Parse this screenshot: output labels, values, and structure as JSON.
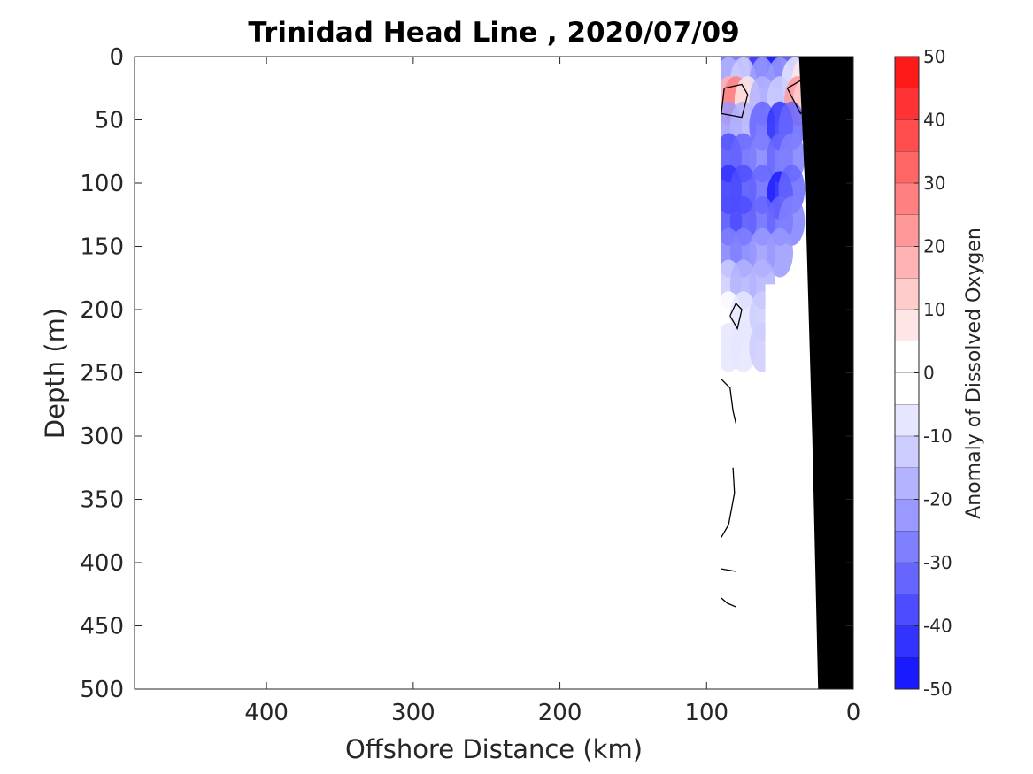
{
  "chart_data": {
    "type": "heatmap",
    "title": "Trinidad Head Line , 2020/07/09",
    "xlabel": "Offshore Distance (km)",
    "ylabel": "Depth (m)",
    "xlim": [
      490,
      0
    ],
    "ylim": [
      0,
      500
    ],
    "x_reversed": true,
    "y_reversed": true,
    "xticks": [
      400,
      300,
      200,
      100,
      0
    ],
    "yticks": [
      0,
      50,
      100,
      150,
      200,
      250,
      300,
      350,
      400,
      450,
      500
    ],
    "colorbar": {
      "label": "Anomaly of Dissolved Oxygen",
      "range": [
        -50,
        50
      ],
      "step": 5,
      "ticks": [
        50,
        40,
        30,
        20,
        10,
        0,
        -10,
        -20,
        -30,
        -40,
        -50
      ],
      "colors": {
        "neg_end": "#0000ff",
        "pos_end": "#ff0000",
        "neutral": "#ffffff"
      }
    },
    "bathymetry_color": "#000000",
    "bathymetry": [
      [
        24,
        500
      ],
      [
        28,
        300
      ],
      [
        33,
        100
      ],
      [
        37,
        0
      ],
      [
        0,
        0
      ],
      [
        0,
        500
      ]
    ],
    "data_region": {
      "x_range": [
        90,
        30
      ],
      "depth_range": [
        0,
        250
      ]
    },
    "cells": [
      {
        "x": 85,
        "y": 5,
        "v": -30
      },
      {
        "x": 75,
        "y": 5,
        "v": -25
      },
      {
        "x": 62,
        "y": 5,
        "v": -40
      },
      {
        "x": 50,
        "y": 5,
        "v": -45
      },
      {
        "x": 40,
        "y": 5,
        "v": -30
      },
      {
        "x": 85,
        "y": 20,
        "v": -15
      },
      {
        "x": 75,
        "y": 20,
        "v": -10
      },
      {
        "x": 62,
        "y": 20,
        "v": -20
      },
      {
        "x": 50,
        "y": 20,
        "v": -20
      },
      {
        "x": 40,
        "y": 20,
        "v": -5
      },
      {
        "x": 33,
        "y": 20,
        "v": 5
      },
      {
        "x": 85,
        "y": 35,
        "v": 15
      },
      {
        "x": 80,
        "y": 35,
        "v": 25
      },
      {
        "x": 72,
        "y": 35,
        "v": 5
      },
      {
        "x": 62,
        "y": 35,
        "v": -15
      },
      {
        "x": 50,
        "y": 35,
        "v": -10
      },
      {
        "x": 38,
        "y": 35,
        "v": 20
      },
      {
        "x": 32,
        "y": 35,
        "v": 10
      },
      {
        "x": 85,
        "y": 55,
        "v": -20
      },
      {
        "x": 75,
        "y": 55,
        "v": -15
      },
      {
        "x": 62,
        "y": 55,
        "v": -30
      },
      {
        "x": 50,
        "y": 55,
        "v": -40
      },
      {
        "x": 42,
        "y": 55,
        "v": -30
      },
      {
        "x": 85,
        "y": 80,
        "v": -35
      },
      {
        "x": 75,
        "y": 80,
        "v": -30
      },
      {
        "x": 62,
        "y": 80,
        "v": -25
      },
      {
        "x": 50,
        "y": 80,
        "v": -30
      },
      {
        "x": 42,
        "y": 80,
        "v": -25
      },
      {
        "x": 85,
        "y": 105,
        "v": -40
      },
      {
        "x": 75,
        "y": 105,
        "v": -35
      },
      {
        "x": 62,
        "y": 105,
        "v": -30
      },
      {
        "x": 50,
        "y": 110,
        "v": -45
      },
      {
        "x": 42,
        "y": 105,
        "v": -30
      },
      {
        "x": 85,
        "y": 130,
        "v": -35
      },
      {
        "x": 75,
        "y": 130,
        "v": -35
      },
      {
        "x": 62,
        "y": 130,
        "v": -30
      },
      {
        "x": 50,
        "y": 130,
        "v": -30
      },
      {
        "x": 42,
        "y": 130,
        "v": -25
      },
      {
        "x": 85,
        "y": 155,
        "v": -25
      },
      {
        "x": 75,
        "y": 155,
        "v": -25
      },
      {
        "x": 62,
        "y": 155,
        "v": -20
      },
      {
        "x": 50,
        "y": 155,
        "v": -20
      },
      {
        "x": 85,
        "y": 180,
        "v": -10
      },
      {
        "x": 75,
        "y": 180,
        "v": -15
      },
      {
        "x": 62,
        "y": 180,
        "v": -15
      },
      {
        "x": 85,
        "y": 205,
        "v": 0
      },
      {
        "x": 75,
        "y": 205,
        "v": -5
      },
      {
        "x": 62,
        "y": 205,
        "v": -10
      },
      {
        "x": 85,
        "y": 230,
        "v": -5
      },
      {
        "x": 75,
        "y": 230,
        "v": -5
      },
      {
        "x": 62,
        "y": 230,
        "v": -10
      }
    ],
    "contours": [
      [
        [
          90,
          45
        ],
        [
          88,
          25
        ],
        [
          76,
          22
        ],
        [
          72,
          30
        ],
        [
          76,
          48
        ],
        [
          90,
          45
        ]
      ],
      [
        [
          45,
          25
        ],
        [
          30,
          15
        ],
        [
          30,
          38
        ],
        [
          36,
          45
        ],
        [
          45,
          25
        ]
      ],
      [
        [
          84,
          205
        ],
        [
          80,
          195
        ],
        [
          76,
          200
        ],
        [
          79,
          215
        ],
        [
          84,
          205
        ]
      ],
      [
        [
          90,
          255
        ],
        [
          84,
          262
        ],
        [
          82,
          280
        ],
        [
          80,
          290
        ]
      ],
      [
        [
          82,
          325
        ],
        [
          81,
          345
        ],
        [
          85,
          370
        ],
        [
          90,
          380
        ]
      ],
      [
        [
          90,
          405
        ],
        [
          80,
          407
        ]
      ],
      [
        [
          90,
          428
        ],
        [
          86,
          432
        ],
        [
          80,
          435
        ]
      ]
    ]
  }
}
